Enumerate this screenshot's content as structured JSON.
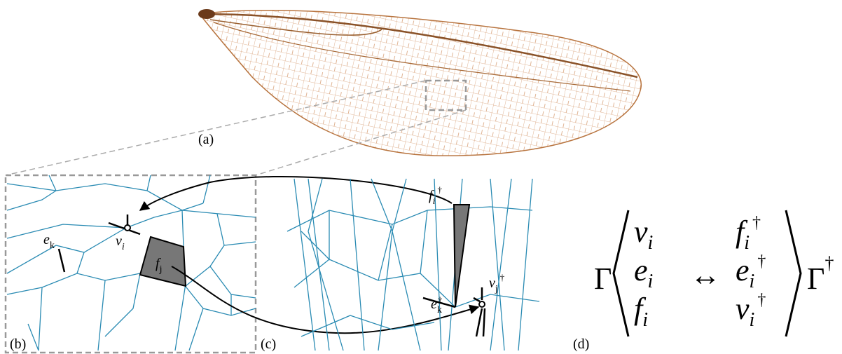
{
  "panels": [
    "(a)",
    "(b)",
    "(c)",
    "(d)"
  ],
  "labels_b": [
    {
      "base": "e",
      "sub": "k"
    },
    {
      "base": "v",
      "sub": "i"
    },
    {
      "base": "f",
      "sub": "j"
    }
  ],
  "labels_c": [
    {
      "base": "f",
      "sub": "i",
      "sup": "†"
    },
    {
      "base": "e",
      "sub": "k",
      "sup": "†"
    },
    {
      "base": "v",
      "sub": "j",
      "sup": "†"
    }
  ],
  "equation": {
    "left": "Γ",
    "arrow": "↔",
    "right": {
      "base": "Γ",
      "sup": "†"
    },
    "left_items": [
      {
        "base": "v",
        "sub": "i"
      },
      {
        "base": "e",
        "sub": "i"
      },
      {
        "base": "f",
        "sub": "i"
      }
    ],
    "right_items": [
      {
        "base": "f",
        "sub": "i",
        "sup": "†"
      },
      {
        "base": "e",
        "sub": "i",
        "sup": "†"
      },
      {
        "base": "v",
        "sub": "i",
        "sup": "†"
      }
    ]
  }
}
